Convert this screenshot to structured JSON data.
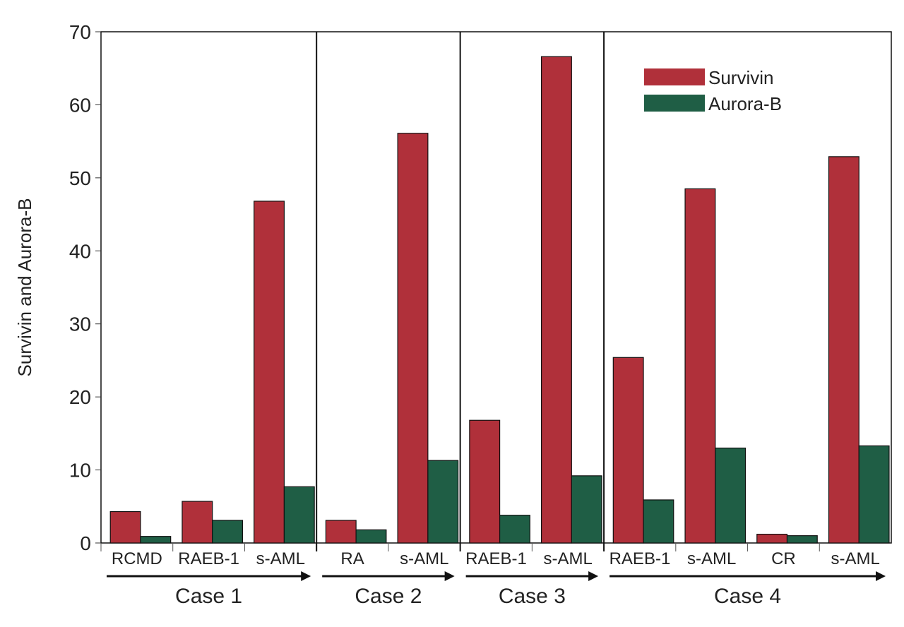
{
  "chart_data": {
    "type": "bar",
    "title": "",
    "xlabel": "",
    "ylabel": "Survivin and Aurora-B",
    "ylim": [
      0,
      70
    ],
    "yticks": [
      0,
      10,
      20,
      30,
      40,
      50,
      60,
      70
    ],
    "grid": false,
    "legend_placement": "top-right",
    "categories": [
      "RCMD",
      "RAEB-1",
      "s-AML",
      "RA",
      "s-AML",
      "RAEB-1",
      "s-AML",
      "RAEB-1",
      "s-AML",
      "CR",
      "s-AML"
    ],
    "groups": [
      {
        "label": "Case 1",
        "count": 3
      },
      {
        "label": "Case 2",
        "count": 2
      },
      {
        "label": "Case 3",
        "count": 2
      },
      {
        "label": "Case 4",
        "count": 4
      }
    ],
    "series": [
      {
        "name": "Survivin",
        "color": "#b0303a",
        "values": [
          4.3,
          5.7,
          46.8,
          3.1,
          56.1,
          16.8,
          66.6,
          25.4,
          48.5,
          1.2,
          52.9
        ]
      },
      {
        "name": "Aurora-B",
        "color": "#1f5e45",
        "values": [
          0.9,
          3.1,
          7.7,
          1.8,
          11.3,
          3.8,
          9.2,
          5.9,
          13.0,
          1.0,
          13.3
        ]
      }
    ]
  }
}
